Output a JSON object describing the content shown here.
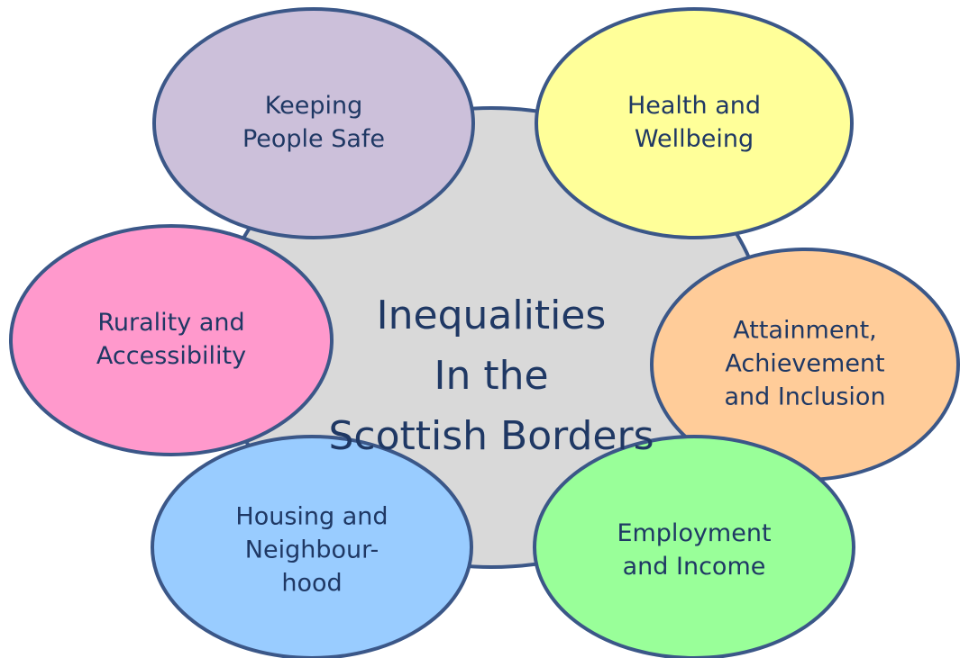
{
  "center": {
    "lines": [
      "Inequalities",
      "In the",
      "Scottish Borders"
    ]
  },
  "nodes": [
    {
      "lines": [
        "Keeping",
        "People Safe"
      ]
    },
    {
      "lines": [
        "Health and",
        "Wellbeing"
      ]
    },
    {
      "lines": [
        "Rurality and",
        "Accessibility"
      ]
    },
    {
      "lines": [
        "Attainment,",
        "Achievement",
        "and Inclusion"
      ]
    },
    {
      "lines": [
        "Housing and",
        "Neighbour-",
        "hood"
      ]
    },
    {
      "lines": [
        "Employment",
        "and Income"
      ]
    }
  ]
}
